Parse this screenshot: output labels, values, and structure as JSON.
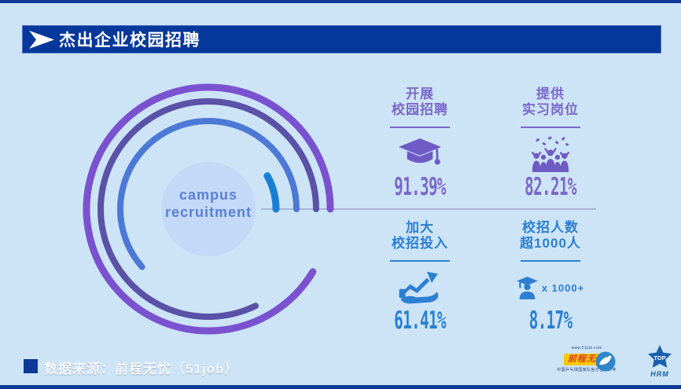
{
  "page": {
    "background": "#cde4f6",
    "accent_dark_blue": "#0d3a96"
  },
  "header": {
    "title": "杰出企业校园招聘"
  },
  "chart_data": {
    "type": "radial-progress",
    "title": "杰出企业校园招聘",
    "center_label_line1": "campus",
    "center_label_line2": "recruitment",
    "center_fill": "#c3d9f7",
    "center_text_color": "#5b80d9",
    "start_angle_deg": 0,
    "direction": "counterclockwise",
    "pointer_line_color": "#a9b4da",
    "series": [
      {
        "name": "开展校园招聘",
        "value": 91.39,
        "unit": "%",
        "color": "#7a52cf",
        "radius": 155,
        "stroke_width": 9
      },
      {
        "name": "提供实习岗位",
        "value": 82.21,
        "unit": "%",
        "color": "#5a52a6",
        "radius": 137,
        "stroke_width": 8
      },
      {
        "name": "加大校招投入",
        "value": 61.41,
        "unit": "%",
        "color": "#4d79d6",
        "radius": 112,
        "stroke_width": 8
      },
      {
        "name": "校招人数超1000人",
        "value": 8.17,
        "unit": "%",
        "color": "#1a7fd4",
        "radius": 86,
        "stroke_width": 9
      }
    ]
  },
  "center_badge": {
    "line1": "campus",
    "line2": "recruitment"
  },
  "stats": [
    {
      "label_line1": "开展",
      "label_line2": "校园招聘",
      "value": "91.39%",
      "icon": "graduation-cap-icon",
      "color": "#7b68cb"
    },
    {
      "label_line1": "提供",
      "label_line2": "实习岗位",
      "value": "82.21%",
      "icon": "celebrating-crowd-icon",
      "color": "#7b68cb"
    },
    {
      "label_line1": "加大",
      "label_line2": "校招投入",
      "value": "61.41%",
      "icon": "hand-growth-arrow-icon",
      "color": "#2c7fd3"
    },
    {
      "label_line1": "校招人数",
      "label_line2": "超1000人",
      "value": "8.17%",
      "icon": "graduate-person-icon",
      "icon_suffix": "x 1000+",
      "color": "#2c7fd3"
    }
  ],
  "footer": {
    "source_label": "数据来源：前程无忧（51job）",
    "logos": {
      "url": "www.51job.com",
      "brand": "前程无忧",
      "partner_caption": "中国乒乓球国家队官方合作伙伴",
      "top_hrm_line1": "TOP",
      "top_hrm_line2": "HRM"
    }
  }
}
